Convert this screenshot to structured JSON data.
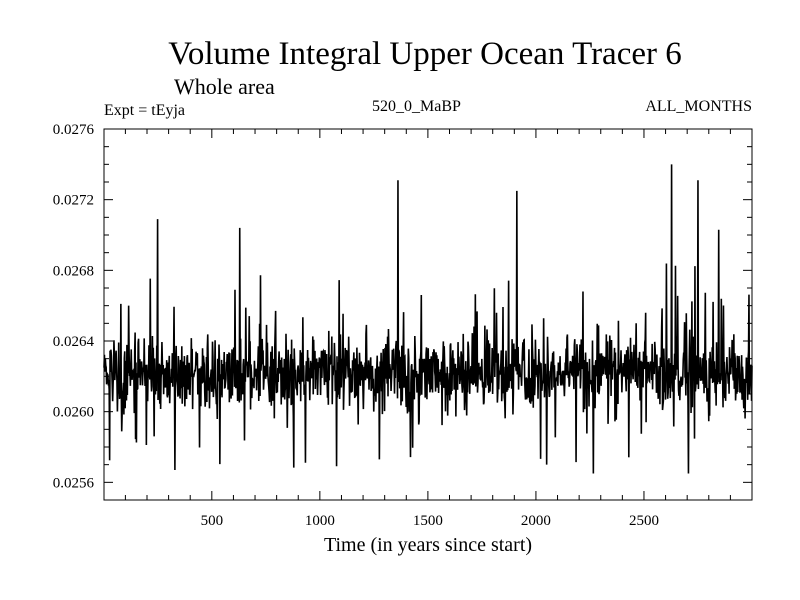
{
  "chart_data": {
    "type": "line",
    "title": "Volume Integral Upper Ocean Tracer 6",
    "subtitle": "Whole area",
    "annotations": {
      "experiment": "Expt = tEyja",
      "run": "520_0_MaBP",
      "months": "ALL_MONTHS"
    },
    "xlabel": "Time (in years since start)",
    "ylabel": "",
    "xlim": [
      1,
      3000
    ],
    "ylim": [
      0.0255,
      0.0276
    ],
    "xticks": [
      500,
      1000,
      1500,
      2000,
      2500
    ],
    "xtick_labels": [
      "500",
      "1000",
      "1500",
      "2000",
      "2500"
    ],
    "yticks": [
      0.0256,
      0.026,
      0.0264,
      0.0268,
      0.0272,
      0.0276
    ],
    "ytick_labels": [
      "0.0256",
      "0.0260",
      "0.0264",
      "0.0268",
      "0.0272",
      "0.0276"
    ],
    "grid": false,
    "series": [
      {
        "color": "#000000",
        "x": [
          1,
          100,
          200,
          250,
          345,
          400,
          500,
          600,
          632,
          700,
          800,
          900,
          1000,
          1100,
          1200,
          1275,
          1300,
          1362,
          1400,
          1500,
          1600,
          1700,
          1800,
          1912,
          1950,
          2050,
          2100,
          2200,
          2265,
          2300,
          2400,
          2500,
          2600,
          2627,
          2660,
          2700,
          2715,
          2800,
          2900,
          3000
        ],
        "values": [
          0.02622,
          0.02619,
          0.02624,
          0.02622,
          0.02619,
          0.02623,
          0.0262,
          0.02622,
          0.02618,
          0.02625,
          0.02621,
          0.02617,
          0.02623,
          0.02622,
          0.0262,
          0.02618,
          0.02624,
          0.02626,
          0.0262,
          0.02623,
          0.02619,
          0.02622,
          0.02625,
          0.02624,
          0.0262,
          0.02617,
          0.02621,
          0.02623,
          0.02619,
          0.02625,
          0.02621,
          0.02624,
          0.02622,
          0.02627,
          0.02621,
          0.02619,
          0.02625,
          0.0262,
          0.02623,
          0.02622
        ],
        "range_min": 0.02565,
        "range_max": 0.02739,
        "peaks": [
          {
            "x": 250,
            "y": 0.02709
          },
          {
            "x": 1362,
            "y": 0.02731
          },
          {
            "x": 1912,
            "y": 0.02725
          },
          {
            "x": 2627,
            "y": 0.0274
          },
          {
            "x": 2750,
            "y": 0.02731
          },
          {
            "x": 630,
            "y": 0.02704
          },
          {
            "x": 2845,
            "y": 0.02703
          }
        ],
        "troughs": [
          {
            "x": 330,
            "y": 0.02567
          },
          {
            "x": 1275,
            "y": 0.02573
          },
          {
            "x": 2265,
            "y": 0.02565
          },
          {
            "x": 2705,
            "y": 0.02565
          },
          {
            "x": 2050,
            "y": 0.0257
          }
        ]
      }
    ]
  }
}
